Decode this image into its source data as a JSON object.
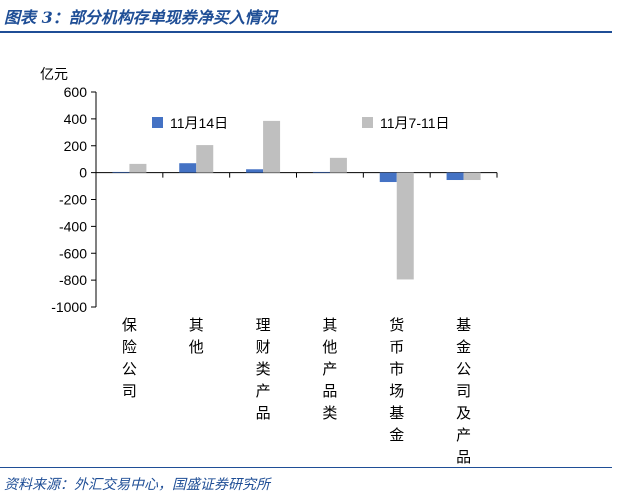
{
  "header": {
    "title": "图表 3：部分机构存单现券净买入情况"
  },
  "footer": {
    "source": "资料来源：外汇交易中心，国盛证券研究所"
  },
  "chart_data": {
    "type": "bar",
    "ylabel": "亿元",
    "ylim": [
      -1000,
      600
    ],
    "yticks": [
      600,
      400,
      200,
      0,
      -200,
      -400,
      -600,
      -800,
      -1000
    ],
    "categories": [
      "保险公司",
      "其他",
      "理财类产品",
      "其他产品类",
      "货币市场基金",
      "基金公司及产品"
    ],
    "series": [
      {
        "name": "11月14日",
        "color": "#4472c4",
        "values": [
          5,
          70,
          25,
          5,
          -70,
          -55
        ]
      },
      {
        "name": "11月7-11日",
        "color": "#bfbfbf",
        "values": [
          65,
          205,
          385,
          110,
          -795,
          -55
        ]
      }
    ],
    "legend_position": "top",
    "grid": false
  }
}
